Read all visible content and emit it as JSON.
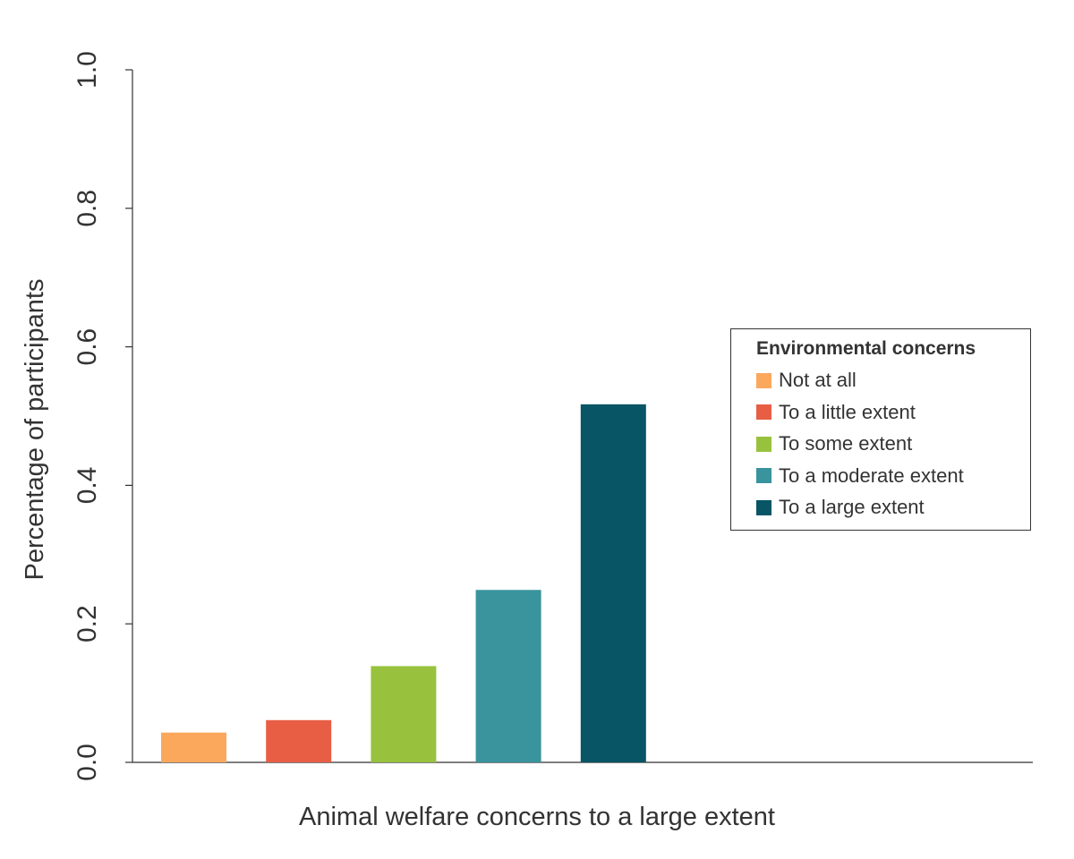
{
  "chart_data": {
    "type": "bar",
    "xlabel": "Animal welfare concerns to a large extent",
    "ylabel": "Percentage of participants",
    "ylim": [
      0.0,
      1.0
    ],
    "yticks": [
      "0.0",
      "0.2",
      "0.4",
      "0.6",
      "0.8",
      "1.0"
    ],
    "grid": false,
    "legend": {
      "title": "Environmental concerns",
      "placement": "right"
    },
    "series": [
      {
        "name": "Not at all",
        "value": 0.043,
        "color": "#FBA85C"
      },
      {
        "name": "To a little extent",
        "value": 0.061,
        "color": "#E85E45"
      },
      {
        "name": "To some extent",
        "value": 0.139,
        "color": "#98C23E"
      },
      {
        "name": "To a moderate extent",
        "value": 0.249,
        "color": "#39949D"
      },
      {
        "name": "To a large extent",
        "value": 0.517,
        "color": "#075565"
      }
    ]
  }
}
